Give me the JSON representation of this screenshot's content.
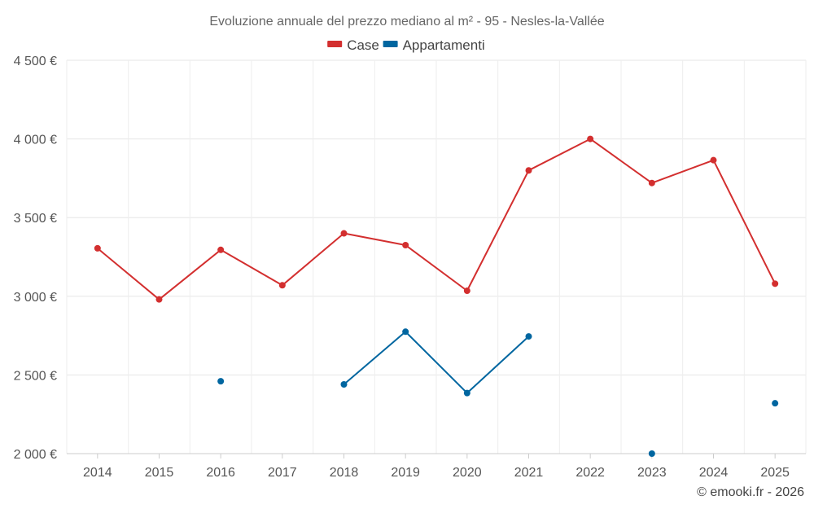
{
  "chart_data": {
    "type": "line",
    "title": "Evoluzione annuale del prezzo mediano al m² - 95 - Nesles-la-Vallée",
    "categories": [
      "2014",
      "2015",
      "2016",
      "2017",
      "2018",
      "2019",
      "2020",
      "2021",
      "2022",
      "2023",
      "2024",
      "2025"
    ],
    "ylim": [
      2000,
      4500
    ],
    "yticks": [
      2000,
      2500,
      3000,
      3500,
      4000,
      4500
    ],
    "ytick_labels": [
      "2 000 €",
      "2 500 €",
      "3 000 €",
      "3 500 €",
      "4 000 €",
      "4 500 €"
    ],
    "grid": true,
    "legend_position": "top-center",
    "series": [
      {
        "name": "Case",
        "color": "#d32f2f",
        "values": [
          3305,
          2980,
          3295,
          3070,
          3400,
          3325,
          3035,
          3800,
          4000,
          3720,
          3865,
          3080
        ]
      },
      {
        "name": "Appartamenti",
        "color": "#0066a0",
        "values": [
          null,
          null,
          2460,
          null,
          2440,
          2775,
          2385,
          2745,
          null,
          2000,
          null,
          2320
        ]
      }
    ],
    "credit": "© emooki.fr - 2026"
  }
}
